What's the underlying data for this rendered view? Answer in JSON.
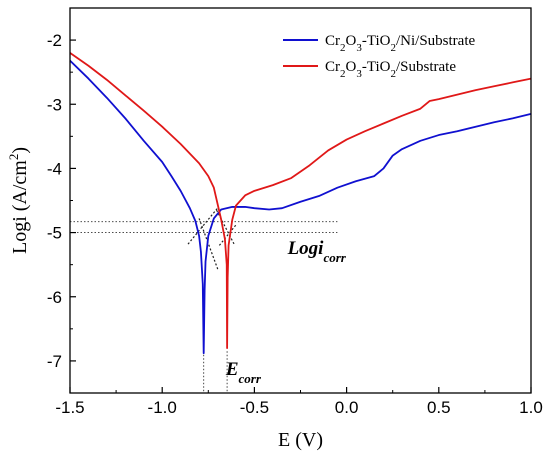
{
  "chart_data": {
    "type": "line",
    "xlabel": "E (V)",
    "ylabel": "Logi (A/cm²)",
    "xlim": [
      -1.5,
      1.0
    ],
    "ylim": [
      -7.5,
      -1.5
    ],
    "x_ticks": [
      "-1.5",
      "-1.0",
      "-0.5",
      "0.0",
      "0.5",
      "1.0"
    ],
    "x_tick_values": [
      -1.5,
      -1.0,
      -0.5,
      0.0,
      0.5,
      1.0
    ],
    "y_ticks": [
      "-2",
      "-3",
      "-4",
      "-5",
      "-6",
      "-7"
    ],
    "y_tick_values": [
      -2,
      -3,
      -4,
      -5,
      -6,
      -7
    ],
    "legend_position": "top-right",
    "grid": false,
    "series": [
      {
        "name": "Cr2O3-TiO2/Ni/Substrate",
        "color": "#1010d0",
        "points": [
          [
            -1.5,
            -2.32
          ],
          [
            -1.4,
            -2.6
          ],
          [
            -1.3,
            -2.9
          ],
          [
            -1.2,
            -3.22
          ],
          [
            -1.1,
            -3.57
          ],
          [
            -1.0,
            -3.9
          ],
          [
            -0.95,
            -4.12
          ],
          [
            -0.9,
            -4.35
          ],
          [
            -0.85,
            -4.62
          ],
          [
            -0.82,
            -4.82
          ],
          [
            -0.8,
            -5.05
          ],
          [
            -0.79,
            -5.3
          ],
          [
            -0.78,
            -5.8
          ],
          [
            -0.775,
            -6.88
          ],
          [
            -0.77,
            -5.9
          ],
          [
            -0.765,
            -5.45
          ],
          [
            -0.75,
            -5.05
          ],
          [
            -0.72,
            -4.78
          ],
          [
            -0.68,
            -4.64
          ],
          [
            -0.62,
            -4.6
          ],
          [
            -0.55,
            -4.6
          ],
          [
            -0.5,
            -4.62
          ],
          [
            -0.42,
            -4.64
          ],
          [
            -0.35,
            -4.62
          ],
          [
            -0.25,
            -4.52
          ],
          [
            -0.15,
            -4.43
          ],
          [
            -0.05,
            -4.3
          ],
          [
            0.05,
            -4.2
          ],
          [
            0.15,
            -4.12
          ],
          [
            0.2,
            -4.0
          ],
          [
            0.25,
            -3.8
          ],
          [
            0.3,
            -3.7
          ],
          [
            0.4,
            -3.57
          ],
          [
            0.5,
            -3.48
          ],
          [
            0.6,
            -3.42
          ],
          [
            0.7,
            -3.35
          ],
          [
            0.8,
            -3.28
          ],
          [
            0.9,
            -3.22
          ],
          [
            1.0,
            -3.15
          ]
        ]
      },
      {
        "name": "Cr2O3-TiO2/Substrate",
        "color": "#e01818",
        "points": [
          [
            -1.5,
            -2.2
          ],
          [
            -1.4,
            -2.4
          ],
          [
            -1.3,
            -2.62
          ],
          [
            -1.2,
            -2.86
          ],
          [
            -1.1,
            -3.1
          ],
          [
            -1.0,
            -3.35
          ],
          [
            -0.9,
            -3.62
          ],
          [
            -0.8,
            -3.92
          ],
          [
            -0.75,
            -4.12
          ],
          [
            -0.72,
            -4.3
          ],
          [
            -0.7,
            -4.55
          ],
          [
            -0.68,
            -4.8
          ],
          [
            -0.66,
            -5.1
          ],
          [
            -0.65,
            -5.5
          ],
          [
            -0.648,
            -6.8
          ],
          [
            -0.645,
            -5.7
          ],
          [
            -0.64,
            -5.2
          ],
          [
            -0.62,
            -4.8
          ],
          [
            -0.6,
            -4.58
          ],
          [
            -0.55,
            -4.42
          ],
          [
            -0.5,
            -4.35
          ],
          [
            -0.4,
            -4.26
          ],
          [
            -0.3,
            -4.15
          ],
          [
            -0.2,
            -3.95
          ],
          [
            -0.1,
            -3.72
          ],
          [
            0.0,
            -3.55
          ],
          [
            0.1,
            -3.42
          ],
          [
            0.2,
            -3.3
          ],
          [
            0.3,
            -3.18
          ],
          [
            0.4,
            -3.07
          ],
          [
            0.45,
            -2.95
          ],
          [
            0.5,
            -2.92
          ],
          [
            0.6,
            -2.85
          ],
          [
            0.7,
            -2.78
          ],
          [
            0.8,
            -2.72
          ],
          [
            0.9,
            -2.66
          ],
          [
            1.0,
            -2.6
          ]
        ]
      }
    ],
    "reference_lines": {
      "horizontal_y": [
        -4.83,
        -5.0
      ],
      "vertical_x": [
        -0.775,
        -0.648
      ],
      "tafel_segments": [
        [
          [
            -0.8,
            -4.78
          ],
          [
            -0.695,
            -5.6
          ]
        ],
        [
          [
            -0.86,
            -5.18
          ],
          [
            -0.7,
            -4.62
          ]
        ],
        [
          [
            -0.705,
            -4.65
          ],
          [
            -0.61,
            -5.18
          ]
        ],
        [
          [
            -0.69,
            -5.2
          ],
          [
            -0.6,
            -4.88
          ]
        ]
      ]
    },
    "annotations": [
      {
        "id": "logi_corr",
        "text": "Logi",
        "subscript": "corr",
        "x": -0.32,
        "y": -5.33
      },
      {
        "id": "e_corr",
        "text": "E",
        "subscript": "corr",
        "x": -0.655,
        "y": -7.22
      }
    ]
  }
}
